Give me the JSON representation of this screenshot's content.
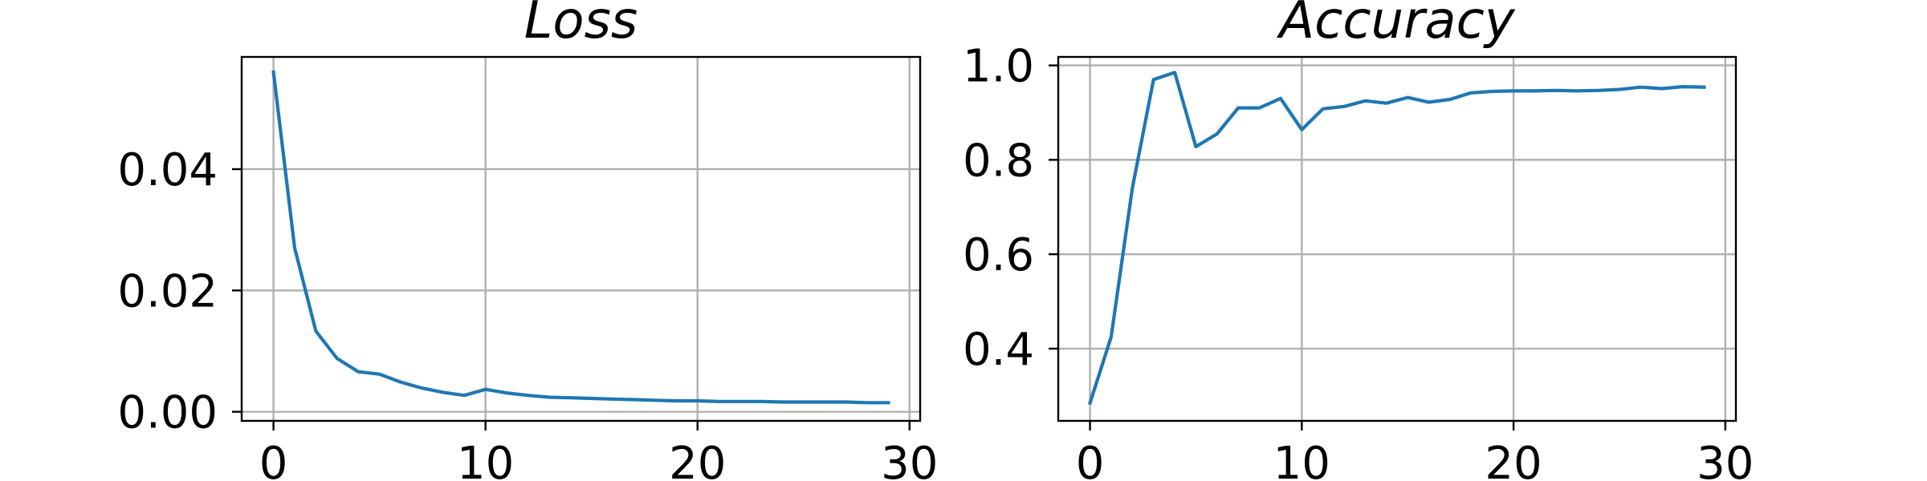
{
  "chart_data": [
    {
      "type": "line",
      "title": "Loss",
      "xlabel": "",
      "ylabel": "",
      "grid": true,
      "xlim": [
        -1.5,
        30.5
      ],
      "ylim": [
        -0.0015,
        0.0585
      ],
      "xticks": [
        0,
        10,
        20,
        30
      ],
      "xtick_labels": [
        "0",
        "10",
        "20",
        "30"
      ],
      "yticks": [
        0.0,
        0.02,
        0.04
      ],
      "ytick_labels": [
        "0.00",
        "0.02",
        "0.04"
      ],
      "color": "#1f77b4",
      "series": [
        {
          "x": [
            0,
            1,
            2,
            3,
            4,
            5,
            6,
            7,
            8,
            9,
            10,
            11,
            12,
            13,
            14,
            15,
            16,
            17,
            18,
            19,
            20,
            21,
            22,
            23,
            24,
            25,
            26,
            27,
            28,
            29
          ],
          "values": [
            0.056,
            0.027,
            0.0133,
            0.0088,
            0.0066,
            0.0062,
            0.0049,
            0.0039,
            0.0032,
            0.0027,
            0.0037,
            0.0031,
            0.0027,
            0.0024,
            0.0023,
            0.0022,
            0.0021,
            0.002,
            0.0019,
            0.0018,
            0.0018,
            0.0017,
            0.0017,
            0.0017,
            0.0016,
            0.0016,
            0.0016,
            0.0016,
            0.0015,
            0.0015
          ]
        }
      ]
    },
    {
      "type": "line",
      "title": "Accuracy",
      "xlabel": "",
      "ylabel": "",
      "grid": true,
      "xlim": [
        -1.5,
        30.5
      ],
      "ylim": [
        0.247,
        1.018
      ],
      "xticks": [
        0,
        10,
        20,
        30
      ],
      "xtick_labels": [
        "0",
        "10",
        "20",
        "30"
      ],
      "yticks": [
        0.4,
        0.6,
        0.8,
        1.0
      ],
      "ytick_labels": [
        "0.4",
        "0.6",
        "0.8",
        "1.0"
      ],
      "color": "#1f77b4",
      "series": [
        {
          "x": [
            0,
            1,
            2,
            3,
            4,
            5,
            6,
            7,
            8,
            9,
            10,
            11,
            12,
            13,
            14,
            15,
            16,
            17,
            18,
            19,
            20,
            21,
            22,
            23,
            24,
            25,
            26,
            27,
            28,
            29
          ],
          "values": [
            0.285,
            0.425,
            0.74,
            0.97,
            0.985,
            0.828,
            0.855,
            0.91,
            0.91,
            0.93,
            0.864,
            0.908,
            0.913,
            0.925,
            0.92,
            0.932,
            0.922,
            0.928,
            0.942,
            0.945,
            0.946,
            0.946,
            0.947,
            0.946,
            0.947,
            0.949,
            0.954,
            0.951,
            0.955,
            0.954
          ]
        }
      ]
    }
  ]
}
